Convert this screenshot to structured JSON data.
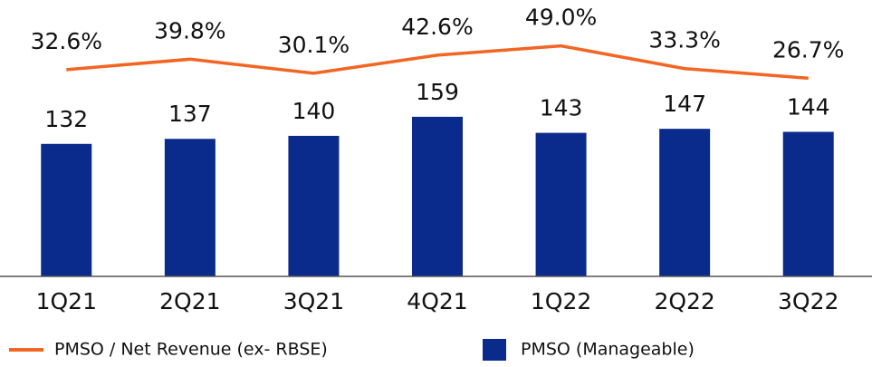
{
  "chart_data": {
    "type": "bar",
    "categories": [
      "1Q21",
      "2Q21",
      "3Q21",
      "4Q21",
      "1Q22",
      "2Q22",
      "3Q22"
    ],
    "series": [
      {
        "name": "PMSO / Net Revenue (ex- RBSE)",
        "type": "line",
        "axis": "y2",
        "color": "#f26522",
        "values": [
          32.6,
          39.8,
          30.1,
          42.6,
          49.0,
          33.3,
          26.7
        ],
        "value_labels": [
          "32.6%",
          "39.8%",
          "30.1%",
          "42.6%",
          "49.0%",
          "33.3%",
          "26.7%"
        ]
      },
      {
        "name": "PMSO (Manageable)",
        "type": "bar",
        "color": "#0a2a8c",
        "values": [
          132,
          137,
          140,
          159,
          143,
          147,
          144
        ]
      }
    ],
    "ylim": [
      0,
      260
    ],
    "y2lim": [
      -110,
      70
    ]
  }
}
